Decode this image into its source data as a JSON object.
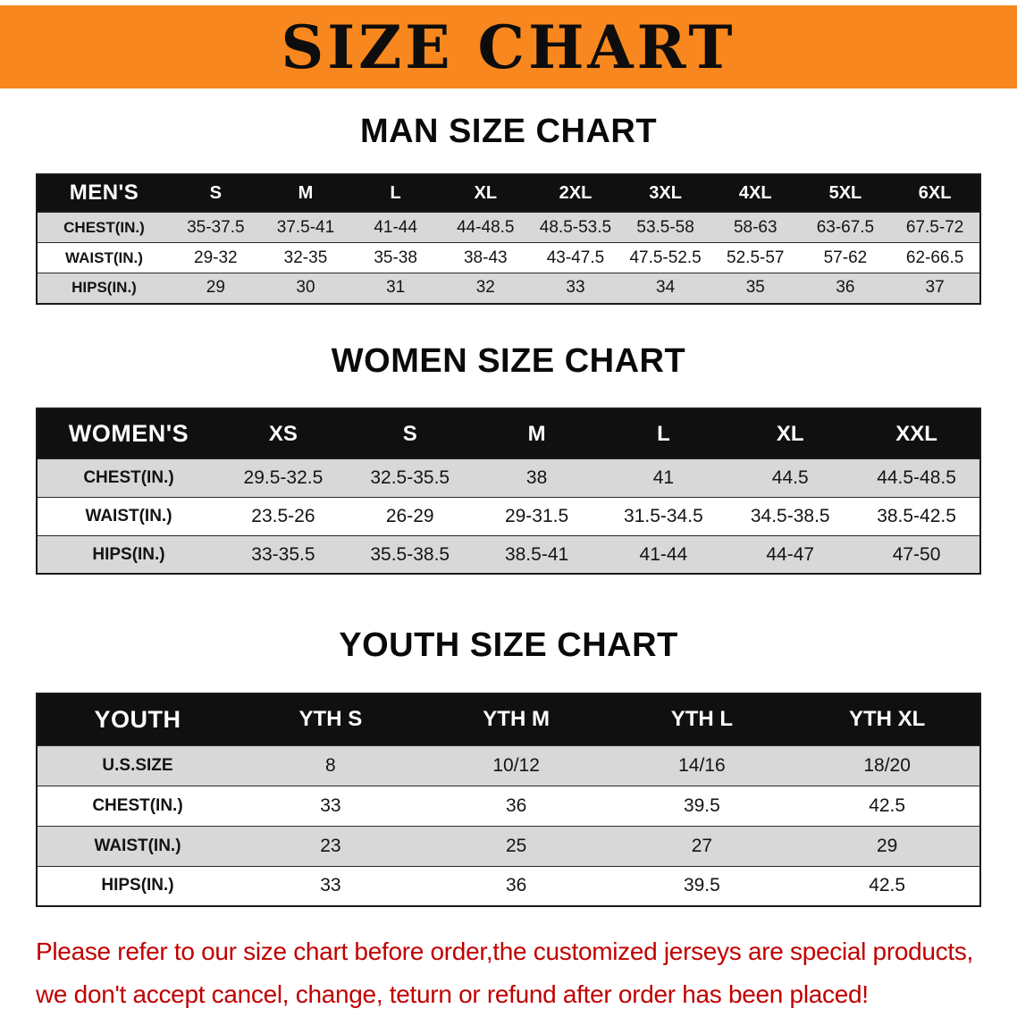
{
  "banner": {
    "title": "SIZE CHART",
    "bg_color": "#F7871E"
  },
  "chart_data": [
    {
      "type": "table",
      "title": "MAN SIZE CHART",
      "corner_label": "MEN'S",
      "columns": [
        "S",
        "M",
        "L",
        "XL",
        "2XL",
        "3XL",
        "4XL",
        "5XL",
        "6XL"
      ],
      "row_labels": [
        "CHEST(IN.)",
        "WAIST(IN.)",
        "HIPS(IN.)"
      ],
      "rows": [
        [
          "35-37.5",
          "37.5-41",
          "41-44",
          "44-48.5",
          "48.5-53.5",
          "53.5-58",
          "58-63",
          "63-67.5",
          "67.5-72"
        ],
        [
          "29-32",
          "32-35",
          "35-38",
          "38-43",
          "43-47.5",
          "47.5-52.5",
          "52.5-57",
          "57-62",
          "62-66.5"
        ],
        [
          "29",
          "30",
          "31",
          "32",
          "33",
          "34",
          "35",
          "36",
          "37"
        ]
      ]
    },
    {
      "type": "table",
      "title": "WOMEN SIZE CHART",
      "corner_label": "WOMEN'S",
      "columns": [
        "XS",
        "S",
        "M",
        "L",
        "XL",
        "XXL"
      ],
      "row_labels": [
        "CHEST(IN.)",
        "WAIST(IN.)",
        "HIPS(IN.)"
      ],
      "rows": [
        [
          "29.5-32.5",
          "32.5-35.5",
          "38",
          "41",
          "44.5",
          "44.5-48.5"
        ],
        [
          "23.5-26",
          "26-29",
          "29-31.5",
          "31.5-34.5",
          "34.5-38.5",
          "38.5-42.5"
        ],
        [
          "33-35.5",
          "35.5-38.5",
          "38.5-41",
          "41-44",
          "44-47",
          "47-50"
        ]
      ]
    },
    {
      "type": "table",
      "title": "YOUTH SIZE CHART",
      "corner_label": "YOUTH",
      "columns": [
        "YTH S",
        "YTH M",
        "YTH L",
        "YTH XL"
      ],
      "row_labels": [
        "U.S.SIZE",
        "CHEST(IN.)",
        "WAIST(IN.)",
        "HIPS(IN.)"
      ],
      "rows": [
        [
          "8",
          "10/12",
          "14/16",
          "18/20"
        ],
        [
          "33",
          "36",
          "39.5",
          "42.5"
        ],
        [
          "23",
          "25",
          "27",
          "29"
        ],
        [
          "33",
          "36",
          "39.5",
          "42.5"
        ]
      ]
    }
  ],
  "footer": {
    "line1": "Please refer to our size chart before order,the customized jerseys are special products,",
    "line2": "we don't accept cancel, change, teturn or refund after order has been placed!",
    "text_color": "#C00000"
  }
}
